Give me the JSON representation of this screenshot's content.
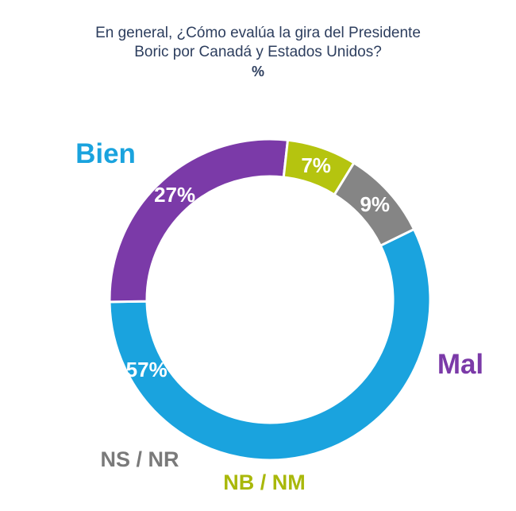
{
  "chart_data": {
    "type": "pie",
    "variant": "donut",
    "title_line1": "En general, ¿Cómo evalúa la gira del Presidente",
    "title_line2": "Boric por Canadá y Estados Unidos?",
    "unit": "%",
    "slices": [
      {
        "label": "Bien",
        "value": 57,
        "value_label": "57%",
        "color": "#1aa3de"
      },
      {
        "label": "Mal",
        "value": 27,
        "value_label": "27%",
        "color": "#7b3aa8"
      },
      {
        "label": "NB / NM",
        "value": 7,
        "value_label": "7%",
        "color": "#b5c40f"
      },
      {
        "label": "NS / NR",
        "value": 9,
        "value_label": "9%",
        "color": "#858585"
      }
    ]
  }
}
